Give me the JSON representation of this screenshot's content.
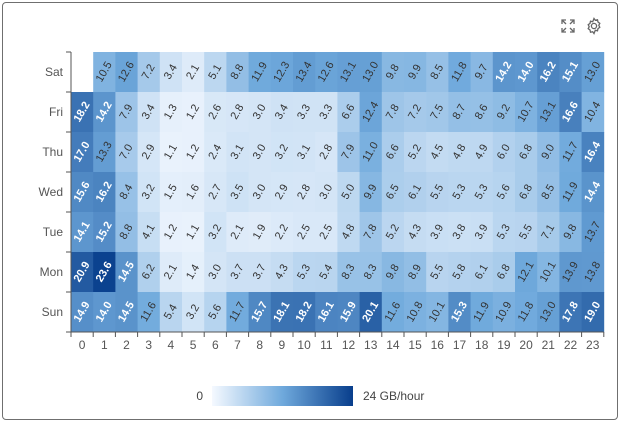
{
  "toolbar": {
    "expand_icon": "expand-icon",
    "settings_icon": "gear-icon"
  },
  "legend": {
    "min_label": "0",
    "max_label": "24 GB/hour"
  },
  "chart_data": {
    "type": "heatmap",
    "title": "",
    "xlabel": "",
    "ylabel": "",
    "x": [
      "0",
      "1",
      "2",
      "3",
      "4",
      "5",
      "6",
      "7",
      "8",
      "9",
      "10",
      "11",
      "12",
      "13",
      "14",
      "15",
      "16",
      "17",
      "18",
      "19",
      "20",
      "21",
      "22",
      "23"
    ],
    "y": [
      "Sat",
      "Fri",
      "Thu",
      "Wed",
      "Tue",
      "Mon",
      "Sun"
    ],
    "scale": {
      "min": 0,
      "max": 24,
      "unit": "GB/hour"
    },
    "colors": {
      "low": "#f5f9ff",
      "mid": "#6fa9dc",
      "high": "#083e8c"
    },
    "values": [
      [
        null,
        10.5,
        12.6,
        7.2,
        3.4,
        2.1,
        5.1,
        8.8,
        11.9,
        12.3,
        13.4,
        12.6,
        13.1,
        13.0,
        9.8,
        9.9,
        8.5,
        11.8,
        9.7,
        14.2,
        14.0,
        16.2,
        15.1,
        13.0
      ],
      [
        18.2,
        14.2,
        7.9,
        3.4,
        1.3,
        1.2,
        2.6,
        2.8,
        3.0,
        3.4,
        3.3,
        3.3,
        6.6,
        12.4,
        7.8,
        7.2,
        7.5,
        8.7,
        8.6,
        9.2,
        10.7,
        13.1,
        16.6,
        10.4
      ],
      [
        17.0,
        13.3,
        7.0,
        2.9,
        1.1,
        1.2,
        2.4,
        3.1,
        3.0,
        3.2,
        3.1,
        2.8,
        7.9,
        11.0,
        6.6,
        5.2,
        4.5,
        4.8,
        4.9,
        6.0,
        6.8,
        9.0,
        11.7,
        16.4
      ],
      [
        15.6,
        16.2,
        8.4,
        3.2,
        1.5,
        1.6,
        2.7,
        3.5,
        3.0,
        2.9,
        2.8,
        3.0,
        5.0,
        9.9,
        6.5,
        6.1,
        5.5,
        5.3,
        5.3,
        5.6,
        6.8,
        8.5,
        11.9,
        14.4
      ],
      [
        14.1,
        15.2,
        8.8,
        4.1,
        1.2,
        1.1,
        3.2,
        2.1,
        1.9,
        2.2,
        2.5,
        2.5,
        4.8,
        7.8,
        5.2,
        4.3,
        3.9,
        3.8,
        3.9,
        5.3,
        5.5,
        7.1,
        9.8,
        13.7
      ],
      [
        20.9,
        23.6,
        14.5,
        6.2,
        2.1,
        1.4,
        3.0,
        3.7,
        3.7,
        4.3,
        5.3,
        5.4,
        8.3,
        8.3,
        9.8,
        8.9,
        5.5,
        5.8,
        6.1,
        6.8,
        12.1,
        10.1,
        13.9,
        13.8
      ],
      [
        14.9,
        14.0,
        14.5,
        11.6,
        5.4,
        3.2,
        5.6,
        11.7,
        15.7,
        18.1,
        18.2,
        16.1,
        15.9,
        20.1,
        11.6,
        10.8,
        10.1,
        15.3,
        11.9,
        10.9,
        11.8,
        13.0,
        17.8,
        19.0
      ]
    ]
  }
}
